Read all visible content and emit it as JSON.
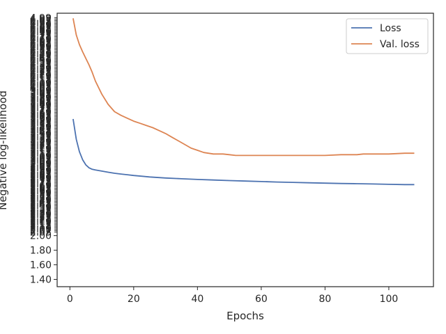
{
  "chart_data": {
    "type": "line",
    "title": "",
    "xlabel": "Epochs",
    "ylabel": "Negative log-likelihood",
    "xlim": [
      -4,
      114
    ],
    "ylim": [
      1.3,
      5.05
    ],
    "x_ticks": [
      0,
      20,
      40,
      60,
      80,
      100
    ],
    "y_ticks_readable": [
      1.4,
      1.6,
      1.8,
      2.0
    ],
    "legend_position": "upper right",
    "grid": false,
    "series": [
      {
        "name": "Loss",
        "color": "#4c72b0",
        "x": [
          1,
          2,
          3,
          4,
          5,
          6,
          7,
          8,
          10,
          12,
          14,
          16,
          18,
          20,
          25,
          30,
          35,
          40,
          45,
          50,
          55,
          60,
          65,
          70,
          75,
          80,
          85,
          90,
          95,
          100,
          105,
          108
        ],
        "y": [
          3.6,
          3.32,
          3.15,
          3.04,
          2.97,
          2.93,
          2.91,
          2.9,
          2.885,
          2.87,
          2.855,
          2.845,
          2.835,
          2.825,
          2.805,
          2.79,
          2.78,
          2.77,
          2.763,
          2.755,
          2.748,
          2.742,
          2.735,
          2.73,
          2.725,
          2.72,
          2.715,
          2.712,
          2.708,
          2.704,
          2.7,
          2.7
        ]
      },
      {
        "name": "Val. loss",
        "color": "#dd8452",
        "x": [
          1,
          2,
          3,
          4,
          5,
          6,
          7,
          8,
          10,
          12,
          14,
          16,
          18,
          20,
          22,
          24,
          26,
          28,
          30,
          32,
          34,
          36,
          38,
          40,
          42,
          45,
          48,
          50,
          52,
          55,
          58,
          60,
          63,
          66,
          70,
          75,
          80,
          85,
          90,
          92,
          95,
          100,
          105,
          107,
          108
        ],
        "y": [
          4.98,
          4.75,
          4.62,
          4.52,
          4.43,
          4.34,
          4.24,
          4.12,
          3.94,
          3.8,
          3.7,
          3.65,
          3.61,
          3.57,
          3.54,
          3.51,
          3.48,
          3.44,
          3.4,
          3.35,
          3.3,
          3.25,
          3.2,
          3.17,
          3.14,
          3.12,
          3.12,
          3.11,
          3.1,
          3.1,
          3.1,
          3.1,
          3.1,
          3.1,
          3.1,
          3.1,
          3.1,
          3.11,
          3.11,
          3.12,
          3.12,
          3.12,
          3.13,
          3.13,
          3.13
        ]
      }
    ]
  }
}
